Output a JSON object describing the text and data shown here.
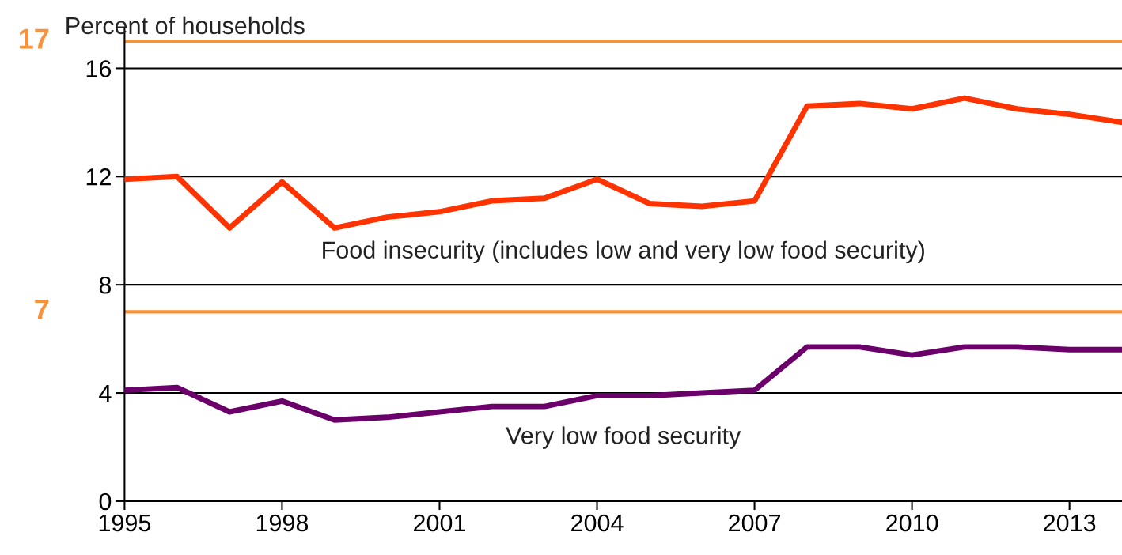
{
  "chart_data": {
    "type": "line",
    "ylabel": "Percent of households",
    "x": [
      1995,
      1996,
      1997,
      1998,
      1999,
      2000,
      2001,
      2002,
      2003,
      2004,
      2005,
      2006,
      2007,
      2008,
      2009,
      2010,
      2011,
      2012,
      2013,
      2014
    ],
    "series": [
      {
        "name": "Food insecurity (includes low and very low food security)",
        "color": "#ff3300",
        "values": [
          11.9,
          12.0,
          10.1,
          11.8,
          10.1,
          10.5,
          10.7,
          11.1,
          11.2,
          11.9,
          11.0,
          10.9,
          11.1,
          14.6,
          14.7,
          14.5,
          14.9,
          14.5,
          14.3,
          14.0
        ]
      },
      {
        "name": "Very low food security",
        "color": "#6b006b",
        "values": [
          4.1,
          4.2,
          3.3,
          3.7,
          3.0,
          3.1,
          3.3,
          3.5,
          3.5,
          3.9,
          3.9,
          4.0,
          4.1,
          5.7,
          5.7,
          5.4,
          5.7,
          5.7,
          5.6,
          5.6
        ]
      }
    ],
    "xlim": [
      1995,
      2014
    ],
    "xticks": [
      1995,
      1998,
      2001,
      2004,
      2007,
      2010,
      2013
    ],
    "ylim": [
      0,
      17.5
    ],
    "yticks": [
      0,
      4,
      8,
      12,
      16
    ],
    "grid": "y",
    "ref_lines": [
      {
        "axis": "y",
        "value": 17,
        "label": "17",
        "color": "#f7923a"
      },
      {
        "axis": "y",
        "value": 7,
        "label": "7",
        "color": "#f7923a"
      }
    ]
  }
}
